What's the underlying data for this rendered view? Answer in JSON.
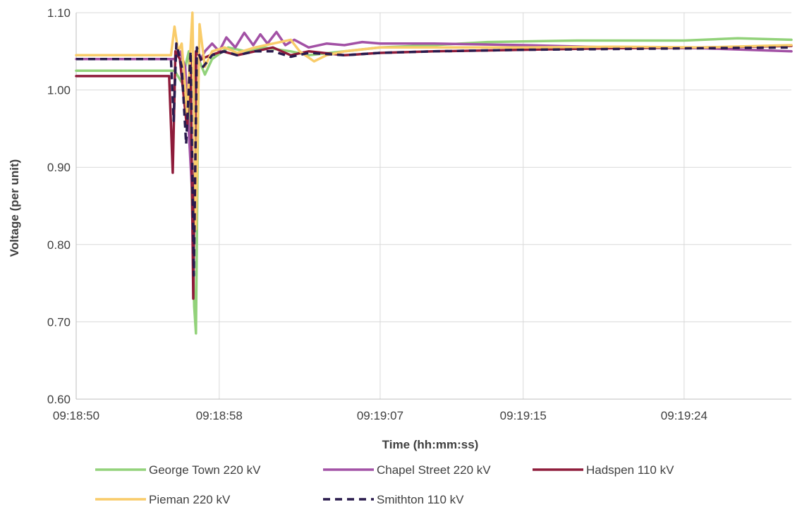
{
  "chart_data": {
    "type": "line",
    "xlabel": "Time (hh:mm:ss)",
    "ylabel": "Voltage (per unit)",
    "xlim": [
      "09:18:50",
      "09:19:30"
    ],
    "ylim": [
      0.6,
      1.1
    ],
    "x_ticks": [
      "09:18:50",
      "09:18:58",
      "09:19:07",
      "09:19:15",
      "09:19:24"
    ],
    "y_ticks": [
      "0.60",
      "0.70",
      "0.80",
      "0.90",
      "1.00",
      "1.10"
    ],
    "grid": true,
    "legend_position": "bottom",
    "series": [
      {
        "name": "George Town 220 kV",
        "color": "#92D27A",
        "dash": "solid",
        "points": [
          [
            "09:18:50",
            1.025
          ],
          [
            "09:18:55.5",
            1.025
          ],
          [
            "09:18:55.9",
            1.01
          ],
          [
            "09:18:56.3",
            1.05
          ],
          [
            "09:18:56.6",
            0.72
          ],
          [
            "09:18:56.7",
            0.685
          ],
          [
            "09:18:56.85",
            1.04
          ],
          [
            "09:18:57.2",
            1.02
          ],
          [
            "09:18:57.6",
            1.04
          ],
          [
            "09:18:58.5",
            1.055
          ],
          [
            "09:18:59.5",
            1.05
          ],
          [
            "09:19:00.5",
            1.055
          ],
          [
            "09:19:02",
            1.05
          ],
          [
            "09:19:03",
            1.045
          ],
          [
            "09:19:05",
            1.05
          ],
          [
            "09:19:07",
            1.055
          ],
          [
            "09:19:10",
            1.058
          ],
          [
            "09:19:13",
            1.062
          ],
          [
            "09:19:18",
            1.064
          ],
          [
            "09:19:24",
            1.064
          ],
          [
            "09:19:27",
            1.067
          ],
          [
            "09:19:30",
            1.065
          ]
        ]
      },
      {
        "name": "Chapel Street 220 kV",
        "color": "#A251A5",
        "dash": "solid",
        "points": [
          [
            "09:18:50",
            1.04
          ],
          [
            "09:18:55.5",
            1.04
          ],
          [
            "09:18:55.8",
            1.05
          ],
          [
            "09:18:56.1",
            1.03
          ],
          [
            "09:18:56.6",
            0.82
          ],
          [
            "09:18:56.75",
            1.03
          ],
          [
            "09:18:57.2",
            1.05
          ],
          [
            "09:18:57.6",
            1.06
          ],
          [
            "09:18:58",
            1.05
          ],
          [
            "09:18:58.4",
            1.068
          ],
          [
            "09:18:58.9",
            1.055
          ],
          [
            "09:18:59.4",
            1.074
          ],
          [
            "09:18:59.9",
            1.058
          ],
          [
            "09:19:00.3",
            1.072
          ],
          [
            "09:19:00.7",
            1.06
          ],
          [
            "09:19:01.2",
            1.075
          ],
          [
            "09:19:01.7",
            1.058
          ],
          [
            "09:19:02.2",
            1.065
          ],
          [
            "09:19:03",
            1.055
          ],
          [
            "09:19:04",
            1.06
          ],
          [
            "09:19:05",
            1.058
          ],
          [
            "09:19:06",
            1.062
          ],
          [
            "09:19:07",
            1.06
          ],
          [
            "09:19:10",
            1.06
          ],
          [
            "09:19:15",
            1.058
          ],
          [
            "09:19:20",
            1.055
          ],
          [
            "09:19:25",
            1.054
          ],
          [
            "09:19:30",
            1.05
          ]
        ]
      },
      {
        "name": "Hadspen 110 kV",
        "color": "#8E1B3A",
        "dash": "solid",
        "points": [
          [
            "09:18:50",
            1.018
          ],
          [
            "09:18:55.2",
            1.018
          ],
          [
            "09:18:55.4",
            0.893
          ],
          [
            "09:18:55.55",
            1.05
          ],
          [
            "09:18:55.8",
            1.04
          ],
          [
            "09:18:56.2",
            0.95
          ],
          [
            "09:18:56.4",
            1.04
          ],
          [
            "09:18:56.55",
            0.73
          ],
          [
            "09:18:56.7",
            1.05
          ],
          [
            "09:18:57",
            1.04
          ],
          [
            "09:18:57.5",
            1.045
          ],
          [
            "09:18:58.2",
            1.05
          ],
          [
            "09:18:59",
            1.045
          ],
          [
            "09:19:00",
            1.05
          ],
          [
            "09:19:01",
            1.055
          ],
          [
            "09:19:02",
            1.045
          ],
          [
            "09:19:03",
            1.05
          ],
          [
            "09:19:05",
            1.045
          ],
          [
            "09:19:07",
            1.048
          ],
          [
            "09:19:10",
            1.05
          ],
          [
            "09:19:15",
            1.052
          ],
          [
            "09:19:20",
            1.054
          ],
          [
            "09:19:25",
            1.055
          ],
          [
            "09:19:30",
            1.057
          ]
        ]
      },
      {
        "name": "Pieman 220 kV",
        "color": "#F9CC6A",
        "dash": "solid",
        "points": [
          [
            "09:18:50",
            1.045
          ],
          [
            "09:18:55.3",
            1.045
          ],
          [
            "09:18:55.5",
            1.082
          ],
          [
            "09:18:55.7",
            1.05
          ],
          [
            "09:18:55.9",
            1.06
          ],
          [
            "09:18:56.2",
            0.97
          ],
          [
            "09:18:56.5",
            1.1
          ],
          [
            "09:18:56.7",
            0.82
          ],
          [
            "09:18:56.9",
            1.085
          ],
          [
            "09:18:57.2",
            1.03
          ],
          [
            "09:18:57.6",
            1.05
          ],
          [
            "09:18:58.3",
            1.055
          ],
          [
            "09:18:59",
            1.048
          ],
          [
            "09:19:00",
            1.055
          ],
          [
            "09:19:01",
            1.06
          ],
          [
            "09:19:02",
            1.065
          ],
          [
            "09:19:02.5",
            1.05
          ],
          [
            "09:19:03.3",
            1.037
          ],
          [
            "09:19:04",
            1.045
          ],
          [
            "09:19:05",
            1.05
          ],
          [
            "09:19:07",
            1.055
          ],
          [
            "09:19:10",
            1.055
          ],
          [
            "09:19:15",
            1.055
          ],
          [
            "09:19:20",
            1.056
          ],
          [
            "09:19:25",
            1.055
          ],
          [
            "09:19:30",
            1.058
          ]
        ]
      },
      {
        "name": "Smithton 110 kV",
        "color": "#2A1B4D",
        "dash": "dashed",
        "points": [
          [
            "09:18:50",
            1.04
          ],
          [
            "09:18:55.3",
            1.04
          ],
          [
            "09:18:55.45",
            0.96
          ],
          [
            "09:18:55.6",
            1.06
          ],
          [
            "09:18:55.9",
            1.03
          ],
          [
            "09:18:56.15",
            0.93
          ],
          [
            "09:18:56.4",
            1.05
          ],
          [
            "09:18:56.58",
            0.76
          ],
          [
            "09:18:56.75",
            1.055
          ],
          [
            "09:18:57.1",
            1.03
          ],
          [
            "09:18:57.6",
            1.045
          ],
          [
            "09:18:58.3",
            1.05
          ],
          [
            "09:18:59",
            1.045
          ],
          [
            "09:19:00",
            1.05
          ],
          [
            "09:19:01",
            1.05
          ],
          [
            "09:19:02",
            1.043
          ],
          [
            "09:19:03",
            1.048
          ],
          [
            "09:19:05",
            1.045
          ],
          [
            "09:19:07",
            1.048
          ],
          [
            "09:19:10",
            1.05
          ],
          [
            "09:19:15",
            1.052
          ],
          [
            "09:19:20",
            1.053
          ],
          [
            "09:19:25",
            1.054
          ],
          [
            "09:19:30",
            1.055
          ]
        ]
      }
    ]
  }
}
